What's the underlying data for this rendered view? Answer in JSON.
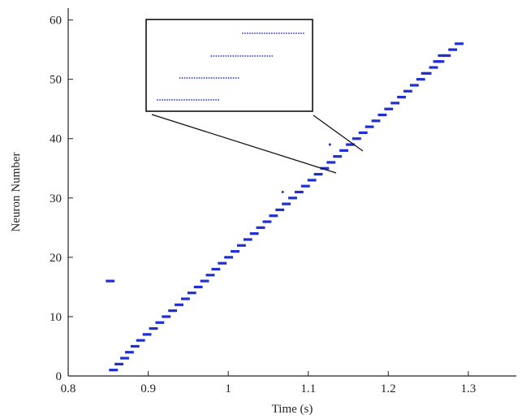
{
  "chart_data": {
    "type": "scatter",
    "title": "",
    "xlabel": "Time (s)",
    "ylabel": "Neuron Number",
    "xlim": [
      0.8,
      1.36
    ],
    "ylim": [
      0,
      62
    ],
    "xticks": [
      0.8,
      0.9,
      1,
      1.1,
      1.2,
      1.3
    ],
    "xtick_labels": [
      "0.8",
      "0.9",
      "1",
      "1.1",
      "1.2",
      "1.3"
    ],
    "yticks": [
      0,
      10,
      20,
      30,
      40,
      50,
      60
    ],
    "ytick_labels": [
      "0",
      "10",
      "20",
      "30",
      "40",
      "50",
      "60"
    ],
    "grid": false,
    "marker_color": "#1f2fd1",
    "spike_bursts": {
      "description_fields": [
        "neuron",
        "t_start",
        "t_end"
      ],
      "rows": [
        [
          1,
          0.851,
          0.862
        ],
        [
          2,
          0.858,
          0.869
        ],
        [
          3,
          0.865,
          0.876
        ],
        [
          4,
          0.871,
          0.882
        ],
        [
          5,
          0.878,
          0.889
        ],
        [
          6,
          0.885,
          0.896
        ],
        [
          7,
          0.893,
          0.904
        ],
        [
          8,
          0.901,
          0.912
        ],
        [
          9,
          0.909,
          0.92
        ],
        [
          10,
          0.917,
          0.928
        ],
        [
          11,
          0.925,
          0.936
        ],
        [
          12,
          0.933,
          0.944
        ],
        [
          13,
          0.941,
          0.952
        ],
        [
          14,
          0.949,
          0.96
        ],
        [
          15,
          0.957,
          0.968
        ],
        [
          16,
          0.965,
          0.976
        ],
        [
          17,
          0.972,
          0.983
        ],
        [
          18,
          0.979,
          0.99
        ],
        [
          19,
          0.987,
          0.998
        ],
        [
          20,
          0.995,
          1.006
        ],
        [
          21,
          1.003,
          1.014
        ],
        [
          22,
          1.011,
          1.022
        ],
        [
          23,
          1.019,
          1.03
        ],
        [
          24,
          1.027,
          1.038
        ],
        [
          25,
          1.035,
          1.046
        ],
        [
          26,
          1.043,
          1.054
        ],
        [
          27,
          1.051,
          1.062
        ],
        [
          28,
          1.059,
          1.07
        ],
        [
          29,
          1.067,
          1.078
        ],
        [
          30,
          1.075,
          1.086
        ],
        [
          31,
          1.083,
          1.094
        ],
        [
          32,
          1.091,
          1.102
        ],
        [
          33,
          1.099,
          1.11
        ],
        [
          34,
          1.107,
          1.118
        ],
        [
          35,
          1.115,
          1.126
        ],
        [
          36,
          1.123,
          1.134
        ],
        [
          37,
          1.131,
          1.142
        ],
        [
          38,
          1.139,
          1.15
        ],
        [
          39,
          1.147,
          1.158
        ],
        [
          40,
          1.155,
          1.166
        ],
        [
          41,
          1.163,
          1.174
        ],
        [
          42,
          1.171,
          1.182
        ],
        [
          43,
          1.179,
          1.19
        ],
        [
          44,
          1.187,
          1.198
        ],
        [
          45,
          1.195,
          1.206
        ],
        [
          46,
          1.203,
          1.214
        ],
        [
          47,
          1.211,
          1.222
        ],
        [
          48,
          1.219,
          1.23
        ],
        [
          49,
          1.227,
          1.238
        ],
        [
          50,
          1.235,
          1.246
        ],
        [
          51,
          1.243,
          1.254
        ],
        [
          52,
          1.251,
          1.262
        ],
        [
          53,
          1.259,
          1.27
        ],
        [
          54,
          1.267,
          1.278
        ],
        [
          55,
          1.275,
          1.286
        ],
        [
          56,
          1.283,
          1.294
        ]
      ],
      "extra": [
        [
          16,
          0.847,
          0.858
        ],
        [
          51,
          1.241,
          1.251
        ],
        [
          53,
          1.256,
          1.266
        ],
        [
          54,
          1.262,
          1.272
        ]
      ]
    },
    "isolated_spikes": [
      {
        "x": 1.068,
        "y": 31
      },
      {
        "x": 1.127,
        "y": 39
      }
    ]
  },
  "inset": {
    "rows": [
      {
        "row": 1,
        "t_start": 0.0,
        "t_end": 0.42
      },
      {
        "row": 2,
        "t_start": 0.15,
        "t_end": 0.55
      },
      {
        "row": 3,
        "t_start": 0.36,
        "t_end": 0.77
      },
      {
        "row": 4,
        "t_start": 0.57,
        "t_end": 0.98
      }
    ]
  }
}
